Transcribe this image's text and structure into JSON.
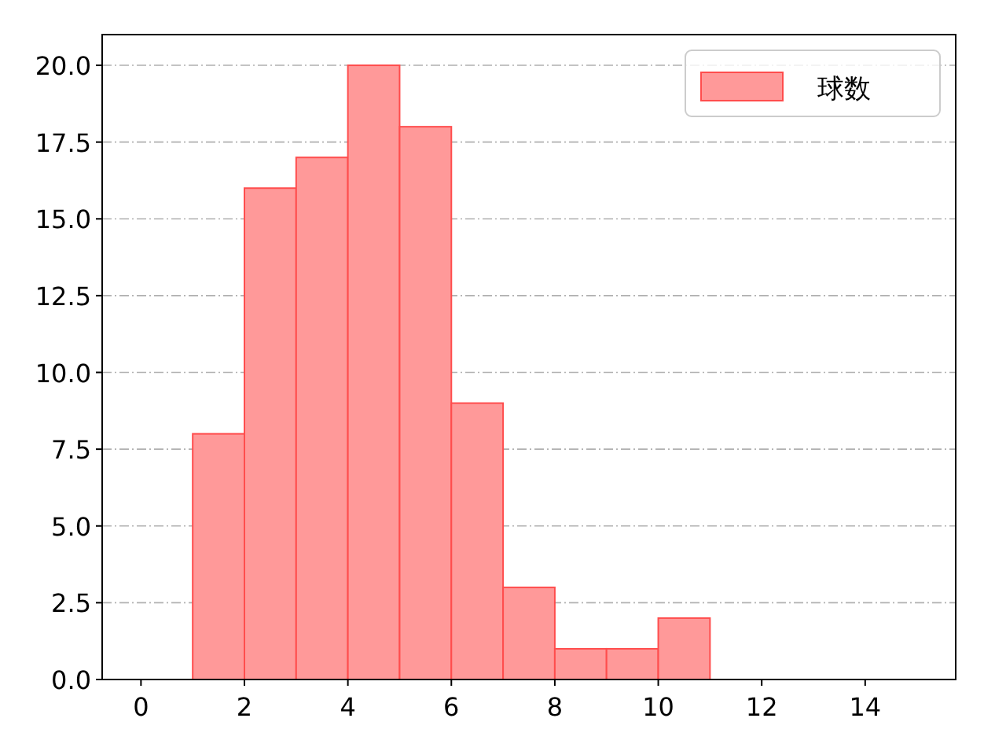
{
  "chart_data": {
    "type": "histogram",
    "bins": [
      1,
      2,
      3,
      4,
      5,
      6,
      7,
      8,
      9,
      10,
      11
    ],
    "series": [
      {
        "name": "球数",
        "color": "#ff9999",
        "values": [
          8,
          16,
          17,
          20,
          18,
          9,
          3,
          1,
          1,
          2
        ]
      }
    ],
    "xlim": [
      -0.75,
      15.75
    ],
    "ylim": [
      0,
      21
    ],
    "xticks": [
      0,
      2,
      4,
      6,
      8,
      10,
      12,
      14
    ],
    "yticks": [
      {
        "value": 0,
        "label": "0.0"
      },
      {
        "value": 2.5,
        "label": "2.5"
      },
      {
        "value": 5,
        "label": "5.0"
      },
      {
        "value": 7.5,
        "label": "7.5"
      },
      {
        "value": 10,
        "label": "10.0"
      },
      {
        "value": 12.5,
        "label": "12.5"
      },
      {
        "value": 15,
        "label": "15.0"
      },
      {
        "value": 17.5,
        "label": "17.5"
      },
      {
        "value": 20,
        "label": "20.0"
      }
    ],
    "grid": "y",
    "legend": "top right"
  }
}
